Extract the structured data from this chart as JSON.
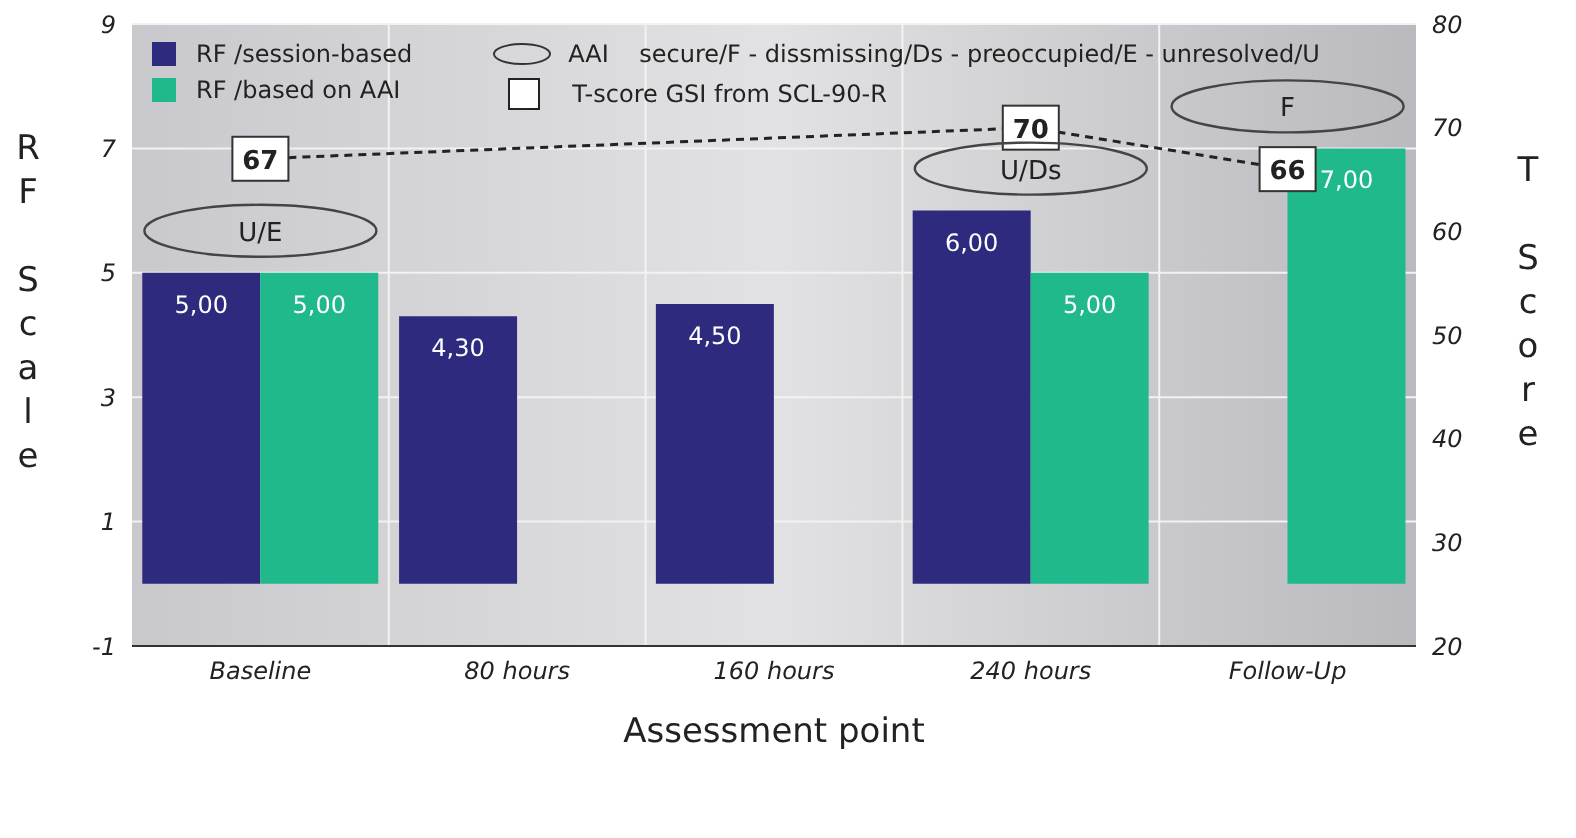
{
  "chart_data": {
    "type": "bar",
    "xlabel": "Assessment point",
    "ylabel": "RF Scale",
    "y2label": "T Score",
    "categories": [
      "Baseline",
      "80 hours",
      "160 hours",
      "240 hours",
      "Follow-Up"
    ],
    "series": [
      {
        "name": "RF /session-based",
        "color": "#2e2a7e",
        "values": [
          5,
          4.3,
          4.5,
          6,
          null
        ],
        "value_labels": [
          "5,00",
          "4,30",
          "4,50",
          "6,00",
          null
        ]
      },
      {
        "name": "RF /based on AAI",
        "color": "#20b98c",
        "values": [
          5,
          null,
          null,
          5,
          7
        ],
        "value_labels": [
          "5,00",
          null,
          null,
          "5,00",
          "7,00"
        ]
      },
      {
        "name": "T-score GSI from SCL-90-R",
        "type": "line",
        "axis": "y2",
        "color": "#222222",
        "line_style": "dashed",
        "marker": "square",
        "values": [
          67,
          null,
          null,
          70,
          66
        ],
        "value_labels": [
          "67",
          null,
          null,
          "70",
          "66"
        ]
      }
    ],
    "annotations": [
      "AAI    secure/F - dissmissing/Ds - preoccupied/E - unresolved/U",
      {
        "text": "U/E",
        "x": "Baseline",
        "y": 5
      },
      {
        "text": "U/Ds",
        "x": "240 hours",
        "y": 6
      },
      {
        "text": "F",
        "x": "Follow-Up",
        "y": 7
      }
    ],
    "ylim": [
      -1,
      9
    ],
    "yticks": [
      -1,
      1,
      3,
      5,
      7,
      9
    ],
    "y2lim": [
      20,
      80
    ],
    "y2ticks": [
      20,
      30,
      40,
      50,
      60,
      70,
      80
    ],
    "grid": true,
    "legend": "top"
  }
}
